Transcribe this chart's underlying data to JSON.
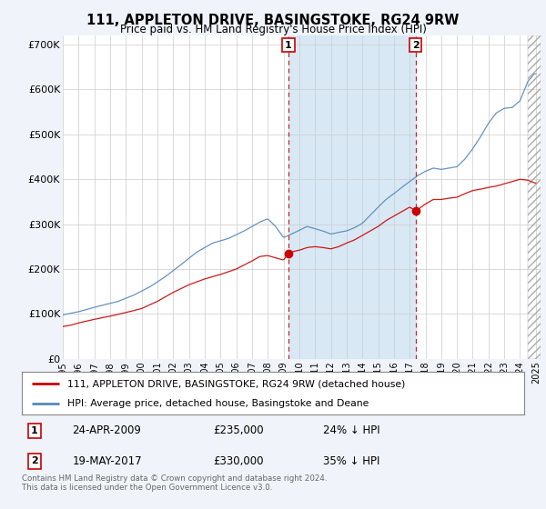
{
  "title": "111, APPLETON DRIVE, BASINGSTOKE, RG24 9RW",
  "subtitle": "Price paid vs. HM Land Registry's House Price Index (HPI)",
  "ylabel_ticks": [
    "£0",
    "£100K",
    "£200K",
    "£300K",
    "£400K",
    "£500K",
    "£600K",
    "£700K"
  ],
  "ytick_vals": [
    0,
    100000,
    200000,
    300000,
    400000,
    500000,
    600000,
    700000
  ],
  "ylim": [
    0,
    720000
  ],
  "xlim_start": 1995.0,
  "xlim_end": 2025.3,
  "legend_line1": "111, APPLETON DRIVE, BASINGSTOKE, RG24 9RW (detached house)",
  "legend_line2": "HPI: Average price, detached house, Basingstoke and Deane",
  "line1_color": "#cc0000",
  "line2_color": "#5588bb",
  "marker1_label": "1",
  "marker1_date": "24-APR-2009",
  "marker1_price": "£235,000",
  "marker1_pct": "24% ↓ HPI",
  "marker1_x": 2009.31,
  "marker1_y": 235000,
  "marker2_label": "2",
  "marker2_date": "19-MAY-2017",
  "marker2_price": "£330,000",
  "marker2_pct": "35% ↓ HPI",
  "marker2_x": 2017.38,
  "marker2_y": 330000,
  "footer1": "Contains HM Land Registry data © Crown copyright and database right 2024.",
  "footer2": "This data is licensed under the Open Government Licence v3.0.",
  "fig_bg_color": "#f0f4fa",
  "plot_bg_color": "#ffffff",
  "shade_color": "#d8e8f5"
}
